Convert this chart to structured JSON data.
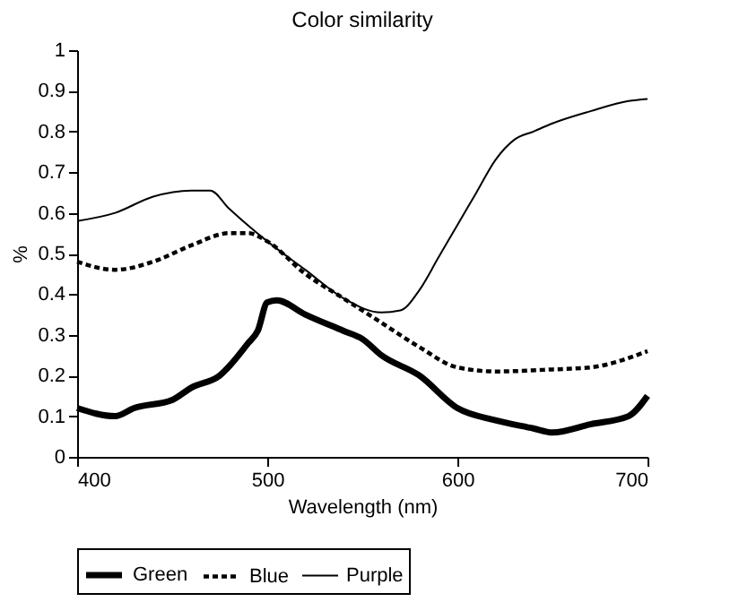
{
  "chart_data": {
    "type": "line",
    "title": "Color similarity",
    "xlabel": "Wavelength (nm)",
    "ylabel": "%",
    "xlim": [
      400,
      700
    ],
    "xticks": [
      400,
      500,
      600,
      700
    ],
    "ylim": [
      0,
      1
    ],
    "yticks": [
      {
        "value": 0,
        "label": "0"
      },
      0.1,
      0.2,
      0.3,
      0.4,
      0.5,
      0.6,
      0.7,
      0.8,
      0.9,
      {
        "value": 1,
        "label": "1"
      }
    ],
    "grid": false,
    "legend": "bottom",
    "marker": "none",
    "series": [
      {
        "name": "Green",
        "color": "#000000",
        "line_style": "solid",
        "x": [
          400,
          420,
          430,
          450,
          460,
          475,
          490,
          495,
          500,
          505,
          520,
          540,
          550,
          560,
          580,
          600,
          620,
          640,
          650,
          670,
          690,
          700
        ],
        "values": [
          0.12,
          0.1,
          0.12,
          0.14,
          0.17,
          0.2,
          0.28,
          0.31,
          0.38,
          0.385,
          0.35,
          0.31,
          0.29,
          0.25,
          0.2,
          0.12,
          0.09,
          0.07,
          0.06,
          0.08,
          0.1,
          0.15
        ]
      },
      {
        "name": "Blue",
        "color": "#000000",
        "line_style": "dashed",
        "x": [
          400,
          420,
          440,
          460,
          480,
          490,
          500,
          520,
          540,
          560,
          580,
          600,
          620,
          650,
          670,
          700
        ],
        "values": [
          0.48,
          0.46,
          0.48,
          0.52,
          0.55,
          0.55,
          0.53,
          0.45,
          0.39,
          0.33,
          0.27,
          0.22,
          0.21,
          0.215,
          0.22,
          0.26
        ]
      },
      {
        "name": "Purple",
        "color": "#000000",
        "line_style": "solid",
        "x": [
          400,
          420,
          440,
          460,
          470,
          480,
          500,
          520,
          540,
          560,
          570,
          580,
          590,
          600,
          610,
          620,
          630,
          640,
          650,
          670,
          690,
          700
        ],
        "values": [
          0.58,
          0.6,
          0.64,
          0.655,
          0.655,
          0.61,
          0.53,
          0.46,
          0.39,
          0.355,
          0.36,
          0.41,
          0.49,
          0.57,
          0.65,
          0.73,
          0.78,
          0.8,
          0.82,
          0.85,
          0.875,
          0.88
        ]
      }
    ]
  }
}
